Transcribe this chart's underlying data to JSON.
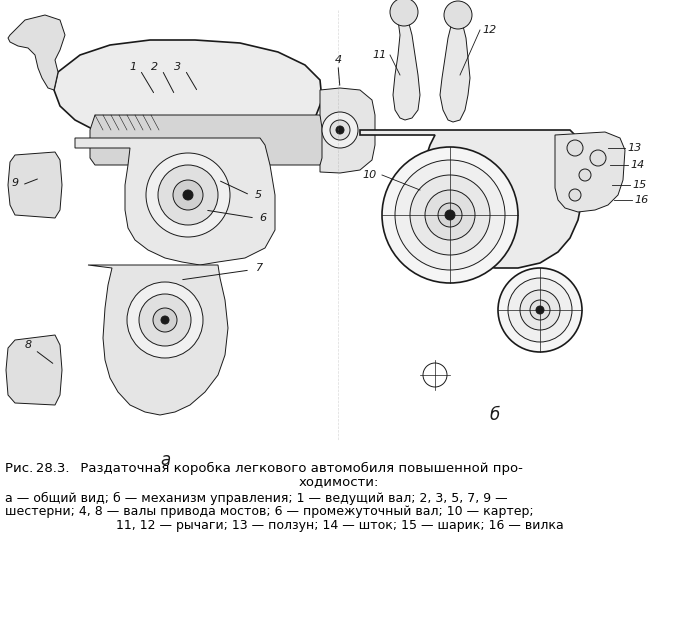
{
  "title_line1": "Рис. 28.3.  Раздаточная коробка легкового автомобиля повышенной про-",
  "title_line2": "ходимости:",
  "caption_line1": "а — общий вид; б — механизм управления; 1 — ведущий вал; 2, 3, 5, 7, 9 —",
  "caption_line2": "шестерни; 4, 8 — валы привода мостов; 6 — промежуточный вал; 10 — картер;",
  "caption_line3": "11, 12 — рычаги; 13 — ползун; 14 — шток; 15 — шарик; 16 — вилка",
  "label_a": "а",
  "label_b": "б",
  "bg_color": "#ffffff",
  "text_color": "#000000",
  "fig_width": 6.78,
  "fig_height": 6.18,
  "dpi": 100
}
